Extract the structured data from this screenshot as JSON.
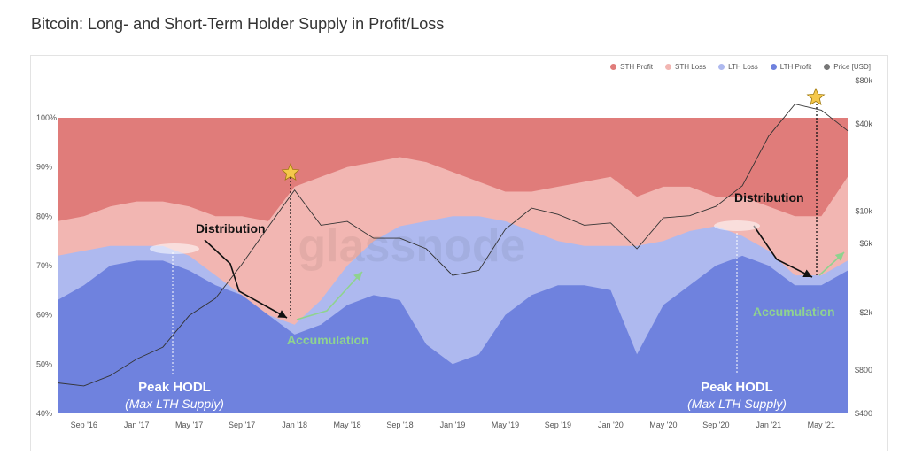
{
  "title": "Bitcoin: Long- and Short-Term Holder Supply in Profit/Loss",
  "watermark": "glassnode",
  "legend": [
    {
      "name": "STH Profit",
      "color": "#e07c7a"
    },
    {
      "name": "STH Loss",
      "color": "#f2b6b2"
    },
    {
      "name": "LTH Loss",
      "color": "#aeb9ef"
    },
    {
      "name": "LTH Profit",
      "color": "#6f82de"
    },
    {
      "name": "Price [USD]",
      "color": "#777777"
    }
  ],
  "annotations": {
    "distribution_1": "Distribution",
    "distribution_2": "Distribution",
    "accumulation_1": "Accumulation",
    "accumulation_2": "Accumulation",
    "peak_1_title": "Peak HODL",
    "peak_1_sub": "(Max LTH Supply)",
    "peak_2_title": "Peak HODL",
    "peak_2_sub": "(Max LTH Supply)"
  },
  "chart_data": {
    "type": "area",
    "x": [
      "Jul '16",
      "Sep '16",
      "Nov '16",
      "Jan '17",
      "Mar '17",
      "May '17",
      "Jul '17",
      "Sep '17",
      "Nov '17",
      "Jan '18",
      "Mar '18",
      "May '18",
      "Jul '18",
      "Sep '18",
      "Nov '18",
      "Jan '19",
      "Mar '19",
      "May '19",
      "Jul '19",
      "Sep '19",
      "Nov '19",
      "Jan '20",
      "Mar '20",
      "May '20",
      "Jul '20",
      "Sep '20",
      "Nov '20",
      "Jan '21",
      "Mar '21",
      "May '21",
      "Jun '21"
    ],
    "x_ticks": [
      "Sep '16",
      "Jan '17",
      "May '17",
      "Sep '17",
      "Jan '18",
      "May '18",
      "Sep '18",
      "Jan '19",
      "May '19",
      "Sep '19",
      "Jan '20",
      "May '20",
      "Sep '20",
      "Jan '21",
      "May '21"
    ],
    "y_left_ticks": [
      "40%",
      "50%",
      "60%",
      "70%",
      "80%",
      "90%",
      "100%"
    ],
    "ylim_left": [
      40,
      100
    ],
    "y_right_ticks": [
      "$400",
      "$800",
      "$2k",
      "$6k",
      "$10k",
      "$40k",
      "$80k"
    ],
    "y_right_values": [
      400,
      800,
      2000,
      6000,
      10000,
      40000,
      80000
    ],
    "y_right_scale": "log",
    "ylim_right": [
      400,
      80000
    ],
    "series": [
      {
        "name": "LTH Profit",
        "values": [
          63,
          66,
          70,
          71,
          71,
          69,
          66,
          64,
          60,
          56,
          58,
          62,
          64,
          63,
          54,
          50,
          52,
          60,
          64,
          66,
          66,
          65,
          52,
          62,
          66,
          70,
          72,
          70,
          66,
          66,
          69
        ]
      },
      {
        "name": "LTH Loss",
        "values": [
          72,
          73,
          74,
          74,
          74,
          72,
          68,
          64,
          60,
          58,
          63,
          70,
          75,
          78,
          79,
          80,
          80,
          79,
          77,
          75,
          74,
          74,
          74,
          75,
          77,
          78,
          76,
          73,
          68,
          68,
          71
        ]
      },
      {
        "name": "STH Loss",
        "values": [
          79,
          80,
          82,
          83,
          83,
          82,
          80,
          80,
          79,
          86,
          88,
          90,
          91,
          92,
          91,
          89,
          87,
          85,
          85,
          86,
          87,
          88,
          84,
          86,
          86,
          84,
          84,
          82,
          80,
          80,
          88
        ]
      },
      {
        "name": "STH Profit",
        "values": [
          100,
          100,
          100,
          100,
          100,
          100,
          100,
          100,
          100,
          100,
          100,
          100,
          100,
          100,
          100,
          100,
          100,
          100,
          100,
          100,
          100,
          100,
          100,
          100,
          100,
          100,
          100,
          100,
          100,
          100,
          100
        ]
      },
      {
        "name": "Price [USD]",
        "values": [
          650,
          620,
          730,
          950,
          1150,
          1900,
          2500,
          4300,
          7800,
          14000,
          8000,
          8500,
          6500,
          6500,
          5500,
          3600,
          3900,
          7500,
          10500,
          9500,
          8000,
          8300,
          5500,
          9000,
          9300,
          10800,
          15000,
          33000,
          55000,
          50000,
          36000
        ]
      }
    ]
  }
}
